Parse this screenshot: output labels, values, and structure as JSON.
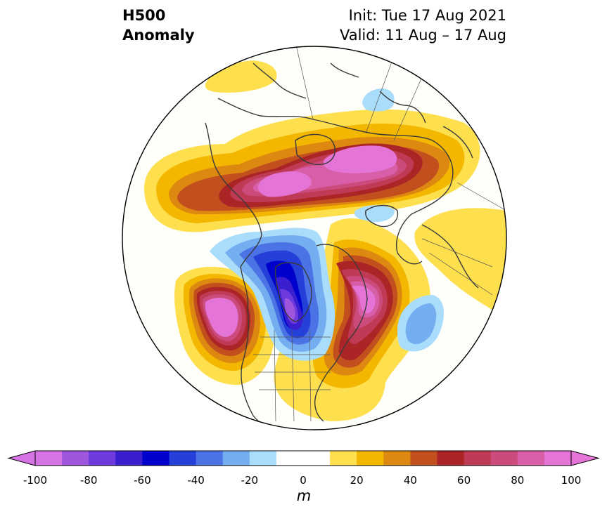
{
  "title": {
    "left_line1": "H500",
    "left_line2": "Anomaly",
    "right_line1": "Init: Tue 17 Aug 2021",
    "right_line2": "Valid: 11 Aug – 17 Aug"
  },
  "colorbar": {
    "unit": "m",
    "ticks": [
      "-100",
      "-80",
      "-60",
      "-40",
      "-20",
      "0",
      "20",
      "40",
      "60",
      "80",
      "100"
    ],
    "colors": [
      "#d674e5",
      "#9e56dd",
      "#6d3ade",
      "#3a1fcf",
      "#0000cc",
      "#2540d8",
      "#4b73e6",
      "#74aef0",
      "#aadcfb",
      "#ffffff",
      "#ffffff",
      "#fee04f",
      "#f3b700",
      "#dd8810",
      "#c2501f",
      "#ac2526",
      "#bf3a54",
      "#cc4b7d",
      "#d85fa7",
      "#e474d6"
    ]
  },
  "map": {
    "projection": "north polar stereographic",
    "field": "500 hPa geopotential height anomaly",
    "anomaly_centers": [
      {
        "region": "Northern Eurasia / Siberia",
        "sign": "positive",
        "peak_m": 100
      },
      {
        "region": "Northeast Pacific / Gulf of Alaska",
        "sign": "positive",
        "peak_m": 100
      },
      {
        "region": "Greenland / Baffin Bay",
        "sign": "positive",
        "peak_m": 100
      },
      {
        "region": "Central Canada / Hudson Bay",
        "sign": "negative",
        "peak_m": -80
      },
      {
        "region": "North Atlantic",
        "sign": "negative",
        "peak_m": -30
      },
      {
        "region": "Mediterranean / Black Sea",
        "sign": "negative",
        "peak_m": -15
      },
      {
        "region": "Central Asia / Tibet",
        "sign": "negative",
        "peak_m": -15
      }
    ]
  }
}
